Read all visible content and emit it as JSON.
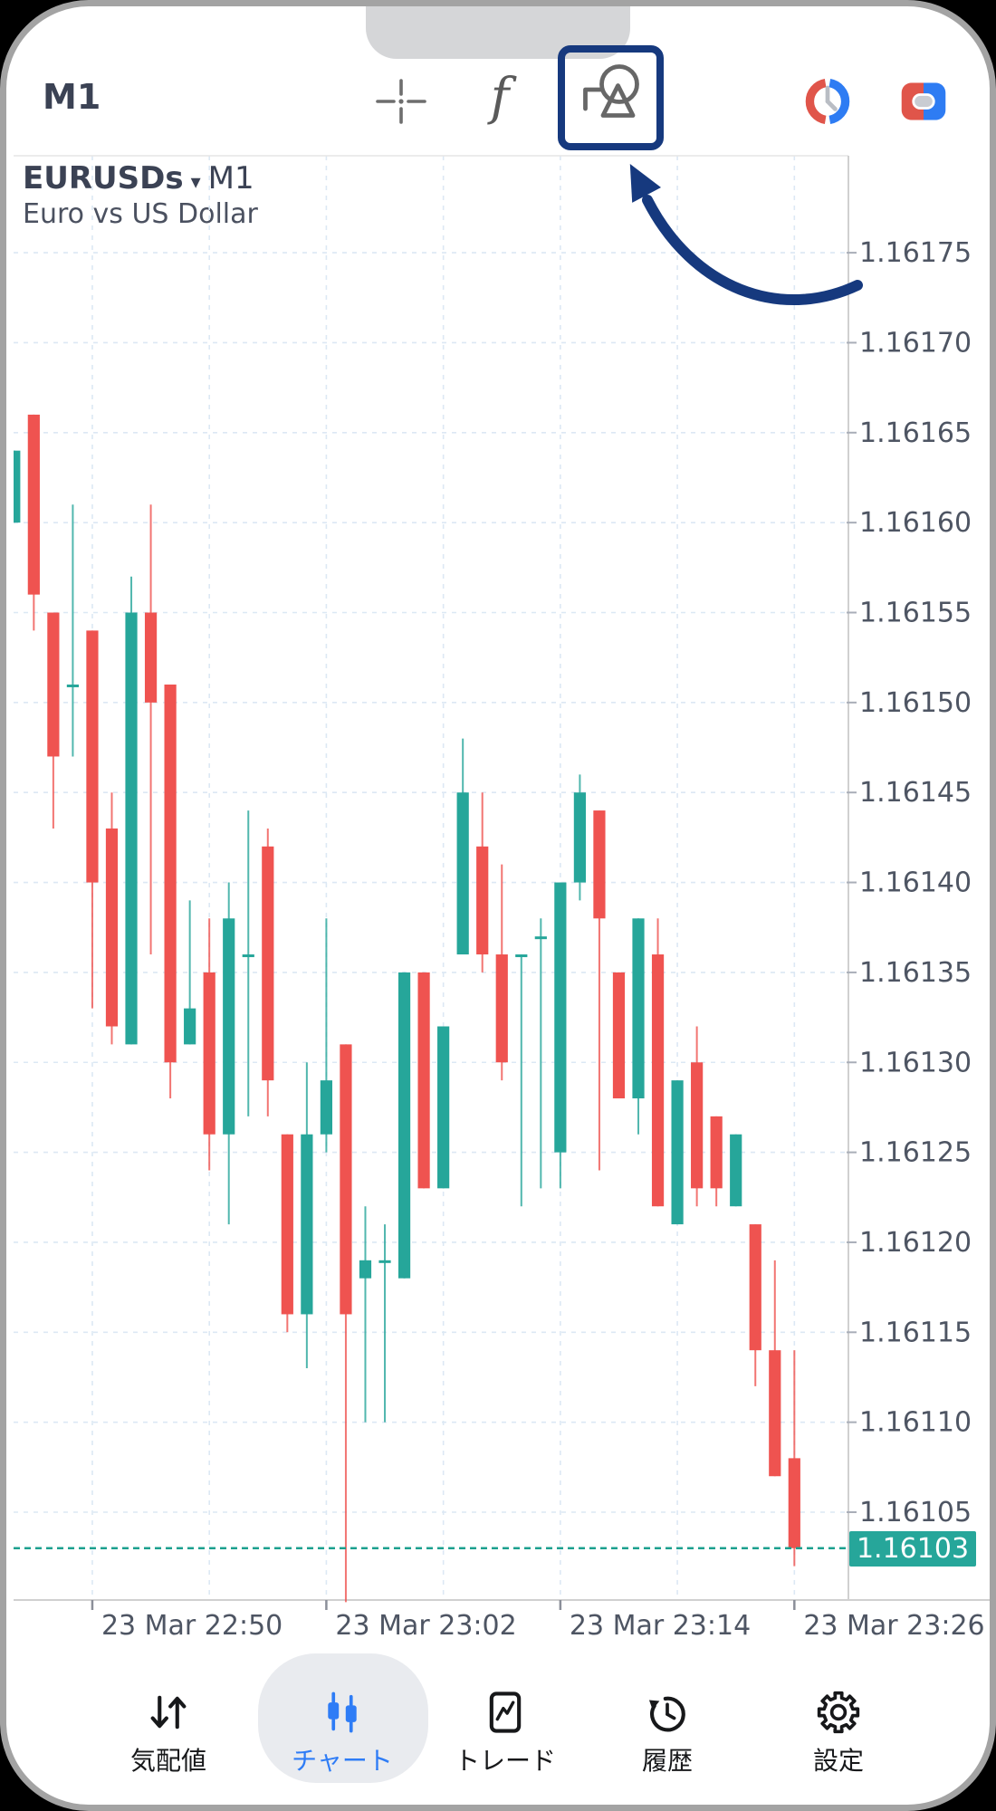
{
  "header": {
    "timeframe": "M1",
    "functions_glyph": "f"
  },
  "chart_title": {
    "symbol": "EURUSDs",
    "dropdown_glyph": "▾",
    "timeframe": "M1",
    "subtitle": "Euro vs US Dollar"
  },
  "price_badge": "1.16103",
  "colors": {
    "up": "#26a69a",
    "down": "#ef5350",
    "accent_navy": "#16397e",
    "nav_active_blue": "#2e7cf6",
    "axis_text": "#4e5563",
    "grid": "#dce8f4"
  },
  "chart_data": {
    "type": "candlestick",
    "symbol": "EURUSDs",
    "timeframe": "M1",
    "date": "23 Mar",
    "current_price": 1.16103,
    "ylim": [
      1.161,
      1.16178
    ],
    "grid": true,
    "y_ticks": [
      1.16175,
      1.1617,
      1.16165,
      1.1616,
      1.16155,
      1.1615,
      1.16145,
      1.1614,
      1.16135,
      1.1613,
      1.16125,
      1.1612,
      1.16115,
      1.1611,
      1.16105
    ],
    "x_ticks": [
      {
        "label": "23 Mar 22:50",
        "i": 4
      },
      {
        "label": "23 Mar 23:02",
        "i": 16
      },
      {
        "label": "23 Mar 23:14",
        "i": 28
      },
      {
        "label": "23 Mar 23:26",
        "i": 40
      }
    ],
    "grid_candle_indices": [
      4,
      10,
      16,
      22,
      28,
      34,
      40
    ],
    "candles": [
      [
        "22:46",
        1.1616,
        1.16164,
        1.1616,
        1.16164
      ],
      [
        "22:47",
        1.16166,
        1.16166,
        1.16154,
        1.16156
      ],
      [
        "22:48",
        1.16155,
        1.16155,
        1.16143,
        1.16147
      ],
      [
        "22:49",
        1.16151,
        1.16161,
        1.16147,
        1.16151
      ],
      [
        "22:50",
        1.16154,
        1.16154,
        1.16133,
        1.1614
      ],
      [
        "22:51",
        1.16143,
        1.16145,
        1.16131,
        1.16132
      ],
      [
        "22:52",
        1.16131,
        1.16157,
        1.16131,
        1.16155
      ],
      [
        "22:53",
        1.16155,
        1.16161,
        1.16136,
        1.1615
      ],
      [
        "22:54",
        1.16151,
        1.16151,
        1.16128,
        1.1613
      ],
      [
        "22:55",
        1.16131,
        1.16139,
        1.16131,
        1.16133
      ],
      [
        "22:56",
        1.16135,
        1.16138,
        1.16124,
        1.16126
      ],
      [
        "22:57",
        1.16126,
        1.1614,
        1.16121,
        1.16138
      ],
      [
        "22:58",
        1.16136,
        1.16144,
        1.16127,
        1.16136
      ],
      [
        "22:59",
        1.16142,
        1.16143,
        1.16127,
        1.16129
      ],
      [
        "23:00",
        1.16126,
        1.16126,
        1.16115,
        1.16116
      ],
      [
        "23:01",
        1.16116,
        1.1613,
        1.16113,
        1.16126
      ],
      [
        "23:02",
        1.16126,
        1.16138,
        1.16125,
        1.16129
      ],
      [
        "23:03",
        1.16131,
        1.16131,
        1.161,
        1.16116
      ],
      [
        "23:04",
        1.16118,
        1.16122,
        1.1611,
        1.16119
      ],
      [
        "23:05",
        1.16119,
        1.16121,
        1.1611,
        1.16119
      ],
      [
        "23:06",
        1.16118,
        1.16135,
        1.16118,
        1.16135
      ],
      [
        "23:07",
        1.16135,
        1.16135,
        1.16123,
        1.16123
      ],
      [
        "23:08",
        1.16123,
        1.16132,
        1.16123,
        1.16132
      ],
      [
        "23:09",
        1.16136,
        1.16148,
        1.16136,
        1.16145
      ],
      [
        "23:10",
        1.16142,
        1.16145,
        1.16135,
        1.16136
      ],
      [
        "23:11",
        1.16136,
        1.16141,
        1.16129,
        1.1613
      ],
      [
        "23:12",
        1.16136,
        1.16136,
        1.16122,
        1.16136
      ],
      [
        "23:13",
        1.16137,
        1.16138,
        1.16123,
        1.16137
      ],
      [
        "23:14",
        1.16125,
        1.1614,
        1.16123,
        1.1614
      ],
      [
        "23:15",
        1.1614,
        1.16146,
        1.16139,
        1.16145
      ],
      [
        "23:16",
        1.16144,
        1.16144,
        1.16124,
        1.16138
      ],
      [
        "23:17",
        1.16135,
        1.16135,
        1.16128,
        1.16128
      ],
      [
        "23:18",
        1.16128,
        1.16138,
        1.16126,
        1.16138
      ],
      [
        "23:19",
        1.16136,
        1.16138,
        1.16122,
        1.16122
      ],
      [
        "23:20",
        1.16121,
        1.16129,
        1.16121,
        1.16129
      ],
      [
        "23:21",
        1.1613,
        1.16132,
        1.16122,
        1.16123
      ],
      [
        "23:22",
        1.16127,
        1.16127,
        1.16122,
        1.16123
      ],
      [
        "23:23",
        1.16122,
        1.16126,
        1.16122,
        1.16126
      ],
      [
        "23:24",
        1.16121,
        1.16121,
        1.16112,
        1.16114
      ],
      [
        "23:25",
        1.16114,
        1.16119,
        1.16107,
        1.16107
      ],
      [
        "23:26",
        1.16108,
        1.16114,
        1.16102,
        1.16103
      ]
    ]
  },
  "bottom_nav": {
    "items": [
      {
        "label": "気配値",
        "active": false
      },
      {
        "label": "チャート",
        "active": true
      },
      {
        "label": "トレード",
        "active": false
      },
      {
        "label": "履歴",
        "active": false
      },
      {
        "label": "設定",
        "active": false
      }
    ]
  }
}
